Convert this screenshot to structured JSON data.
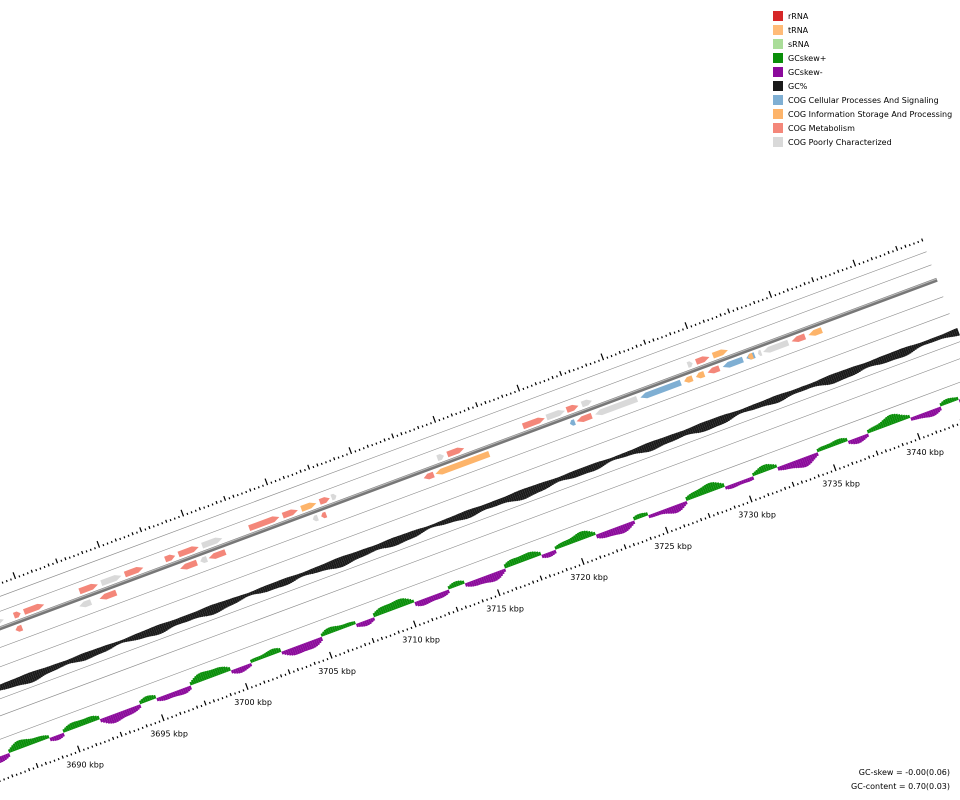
{
  "legend": {
    "items": [
      {
        "label": "rRNA",
        "color": "#d62728"
      },
      {
        "label": "tRNA",
        "color": "#ffbb78"
      },
      {
        "label": "sRNA",
        "color": "#aadd99"
      },
      {
        "label": "GCskew+",
        "color": "#0a8f0a"
      },
      {
        "label": "GCskew-",
        "color": "#8b0a9b"
      },
      {
        "label": "GC%",
        "color": "#1a1a1a"
      },
      {
        "label": "COG Cellular Processes And Signaling",
        "color": "#7fafd3"
      },
      {
        "label": "COG Information Storage And Processing",
        "color": "#fdb46a"
      },
      {
        "label": "COG Metabolism",
        "color": "#f4877a"
      },
      {
        "label": "COG Poorly Characterized",
        "color": "#d9d9d9"
      }
    ]
  },
  "stats": {
    "gc_skew": "GC-skew = -0.00(0.06)",
    "gc_content": "GC-content = 0.70(0.03)"
  },
  "axis": {
    "unit": "kbp",
    "major_ticks": [
      {
        "label": "3690 kbp",
        "value": 3690
      },
      {
        "label": "3695 kbp",
        "value": 3695
      },
      {
        "label": "3700 kbp",
        "value": 3700
      },
      {
        "label": "3705 kbp",
        "value": 3705
      },
      {
        "label": "3710 kbp",
        "value": 3710
      },
      {
        "label": "3715 kbp",
        "value": 3715
      },
      {
        "label": "3720 kbp",
        "value": 3720
      },
      {
        "label": "3725 kbp",
        "value": 3725
      },
      {
        "label": "3730 kbp",
        "value": 3730
      },
      {
        "label": "3735 kbp",
        "value": 3735
      },
      {
        "label": "3740 kbp",
        "value": 3740
      }
    ]
  },
  "genes": [
    {
      "strand": "+",
      "start": 3687.6,
      "end": 3688.6,
      "category": "COG Poorly Characterized"
    },
    {
      "strand": "+",
      "start": 3689.2,
      "end": 3689.6,
      "category": "COG Metabolism"
    },
    {
      "strand": "+",
      "start": 3689.8,
      "end": 3691.0,
      "category": "COG Metabolism"
    },
    {
      "strand": "+",
      "start": 3693.1,
      "end": 3694.2,
      "category": "COG Metabolism"
    },
    {
      "strand": "+",
      "start": 3694.4,
      "end": 3695.6,
      "category": "COG Poorly Characterized"
    },
    {
      "strand": "+",
      "start": 3695.8,
      "end": 3696.9,
      "category": "COG Metabolism"
    },
    {
      "strand": "+",
      "start": 3698.2,
      "end": 3698.8,
      "category": "COG Metabolism"
    },
    {
      "strand": "+",
      "start": 3699.0,
      "end": 3700.2,
      "category": "COG Metabolism"
    },
    {
      "strand": "+",
      "start": 3700.4,
      "end": 3701.6,
      "category": "COG Poorly Characterized"
    },
    {
      "strand": "+",
      "start": 3703.2,
      "end": 3705.0,
      "category": "COG Metabolism"
    },
    {
      "strand": "+",
      "start": 3705.2,
      "end": 3706.1,
      "category": "COG Metabolism"
    },
    {
      "strand": "+",
      "start": 3706.3,
      "end": 3707.2,
      "category": "COG Information Storage And Processing"
    },
    {
      "strand": "+",
      "start": 3707.4,
      "end": 3708.0,
      "category": "COG Metabolism"
    },
    {
      "strand": "+",
      "start": 3708.1,
      "end": 3708.4,
      "category": "COG Poorly Characterized"
    },
    {
      "strand": "+",
      "start": 3714.4,
      "end": 3714.8,
      "category": "COG Poorly Characterized"
    },
    {
      "strand": "+",
      "start": 3715.0,
      "end": 3716.0,
      "category": "COG Metabolism"
    },
    {
      "strand": "+",
      "start": 3719.5,
      "end": 3720.8,
      "category": "COG Metabolism"
    },
    {
      "strand": "+",
      "start": 3720.9,
      "end": 3722.0,
      "category": "COG Poorly Characterized"
    },
    {
      "strand": "+",
      "start": 3722.1,
      "end": 3722.8,
      "category": "COG Metabolism"
    },
    {
      "strand": "+",
      "start": 3723.0,
      "end": 3723.6,
      "category": "COG Poorly Characterized"
    },
    {
      "strand": "+",
      "start": 3729.3,
      "end": 3729.6,
      "category": "COG Poorly Characterized"
    },
    {
      "strand": "+",
      "start": 3729.8,
      "end": 3730.6,
      "category": "COG Metabolism"
    },
    {
      "strand": "+",
      "start": 3730.8,
      "end": 3731.7,
      "category": "COG Information Storage And Processing"
    },
    {
      "strand": "-",
      "start": 3689.0,
      "end": 3689.4,
      "category": "COG Metabolism"
    },
    {
      "strand": "-",
      "start": 3692.8,
      "end": 3693.5,
      "category": "COG Poorly Characterized"
    },
    {
      "strand": "-",
      "start": 3694.0,
      "end": 3695.0,
      "category": "COG Metabolism"
    },
    {
      "strand": "-",
      "start": 3698.8,
      "end": 3699.8,
      "category": "COG Metabolism"
    },
    {
      "strand": "-",
      "start": 3700.0,
      "end": 3700.4,
      "category": "COG Poorly Characterized"
    },
    {
      "strand": "-",
      "start": 3700.5,
      "end": 3701.5,
      "category": "COG Metabolism"
    },
    {
      "strand": "-",
      "start": 3706.7,
      "end": 3707.0,
      "category": "COG Poorly Characterized"
    },
    {
      "strand": "-",
      "start": 3707.2,
      "end": 3707.5,
      "category": "COG Metabolism"
    },
    {
      "strand": "-",
      "start": 3713.3,
      "end": 3713.9,
      "category": "COG Metabolism"
    },
    {
      "strand": "-",
      "start": 3714.0,
      "end": 3717.2,
      "category": "COG Information Storage And Processing"
    },
    {
      "strand": "-",
      "start": 3722.0,
      "end": 3722.3,
      "category": "COG Cellular Processes And Signaling"
    },
    {
      "strand": "-",
      "start": 3722.4,
      "end": 3723.3,
      "category": "COG Metabolism"
    },
    {
      "strand": "-",
      "start": 3723.5,
      "end": 3726.0,
      "category": "COG Poorly Characterized"
    },
    {
      "strand": "-",
      "start": 3726.2,
      "end": 3728.6,
      "category": "COG Cellular Processes And Signaling"
    },
    {
      "strand": "-",
      "start": 3728.8,
      "end": 3729.3,
      "category": "COG Information Storage And Processing"
    },
    {
      "strand": "-",
      "start": 3729.5,
      "end": 3730.0,
      "category": "COG Information Storage And Processing"
    },
    {
      "strand": "-",
      "start": 3730.2,
      "end": 3730.9,
      "category": "COG Metabolism"
    },
    {
      "strand": "-",
      "start": 3731.1,
      "end": 3732.3,
      "category": "COG Cellular Processes And Signaling"
    },
    {
      "strand": "-",
      "start": 3732.5,
      "end": 3733.0,
      "category": "COG Cellular Processes And Signaling"
    },
    {
      "strand": "-",
      "start": 3733.2,
      "end": 3733.4,
      "category": "COG Poorly Characterized"
    },
    {
      "strand": "-",
      "start": 3733.5,
      "end": 3735.0,
      "category": "COG Poorly Characterized"
    },
    {
      "strand": "-",
      "start": 3735.2,
      "end": 3736.0,
      "category": "COG Metabolism"
    },
    {
      "strand": "-",
      "start": 3736.2,
      "end": 3737.0,
      "category": "COG Information Storage And Processing"
    },
    {
      "strand": "-",
      "start": 3732.6,
      "end": 3732.9,
      "category": "COG Information Storage And Processing"
    }
  ]
}
